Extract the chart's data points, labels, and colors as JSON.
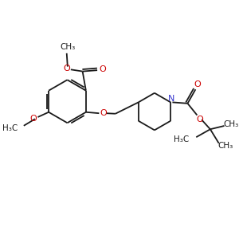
{
  "bg_color": "#ffffff",
  "bond_color": "#1a1a1a",
  "oxygen_color": "#cc0000",
  "nitrogen_color": "#3333cc",
  "line_width": 1.3,
  "font_size": 7.5,
  "fig_size": [
    3.0,
    3.0
  ],
  "dpi": 100,
  "xlim": [
    0,
    10
  ],
  "ylim": [
    0,
    10
  ]
}
